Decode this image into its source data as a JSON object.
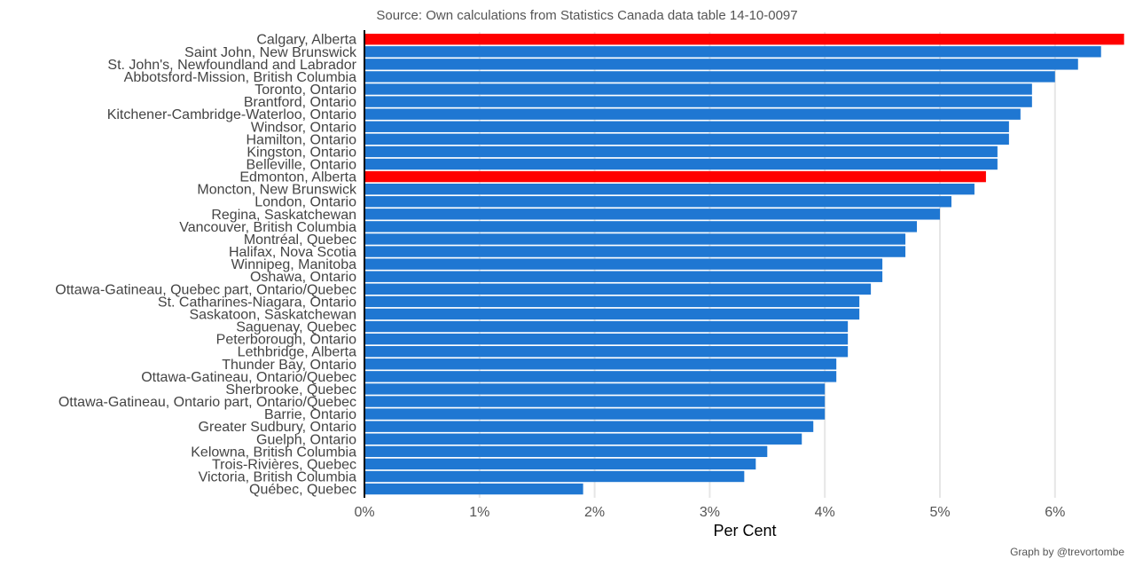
{
  "chart_data": {
    "type": "bar",
    "orientation": "horizontal",
    "subtitle": "Source: Own calculations from Statistics Canada data table 14-10-0097",
    "xlabel": "Per Cent",
    "caption": "Graph by @trevortombe",
    "xlim": [
      0,
      6.6
    ],
    "xticks": [
      "0%",
      "1%",
      "2%",
      "3%",
      "4%",
      "5%",
      "6%"
    ],
    "xtick_values": [
      0,
      1,
      2,
      3,
      4,
      5,
      6
    ],
    "grid": true,
    "colors": {
      "default": "#1f77d2",
      "highlight": "#ff0000"
    },
    "categories": [
      "Calgary, Alberta",
      "Saint John, New Brunswick",
      "St. John's, Newfoundland and Labrador",
      "Abbotsford-Mission, British Columbia",
      "Toronto, Ontario",
      "Brantford, Ontario",
      "Kitchener-Cambridge-Waterloo, Ontario",
      "Windsor, Ontario",
      "Hamilton, Ontario",
      "Kingston, Ontario",
      "Belleville, Ontario",
      "Edmonton, Alberta",
      "Moncton, New Brunswick",
      "London, Ontario",
      "Regina, Saskatchewan",
      "Vancouver, British Columbia",
      "Montréal, Quebec",
      "Halifax, Nova Scotia",
      "Winnipeg, Manitoba",
      "Oshawa, Ontario",
      "Ottawa-Gatineau, Quebec part, Ontario/Quebec",
      "St. Catharines-Niagara, Ontario",
      "Saskatoon, Saskatchewan",
      "Saguenay, Quebec",
      "Peterborough, Ontario",
      "Lethbridge, Alberta",
      "Thunder Bay, Ontario",
      "Ottawa-Gatineau, Ontario/Quebec",
      "Sherbrooke, Quebec",
      "Ottawa-Gatineau, Ontario part, Ontario/Quebec",
      "Barrie, Ontario",
      "Greater Sudbury, Ontario",
      "Guelph, Ontario",
      "Kelowna, British Columbia",
      "Trois-Rivières, Quebec",
      "Victoria, British Columbia",
      "Québec, Quebec"
    ],
    "values": [
      6.6,
      6.4,
      6.2,
      6.0,
      5.8,
      5.8,
      5.7,
      5.6,
      5.6,
      5.5,
      5.5,
      5.4,
      5.3,
      5.1,
      5.0,
      4.8,
      4.7,
      4.7,
      4.5,
      4.5,
      4.4,
      4.3,
      4.3,
      4.2,
      4.2,
      4.2,
      4.1,
      4.1,
      4.0,
      4.0,
      4.0,
      3.9,
      3.8,
      3.5,
      3.4,
      3.3,
      1.9
    ],
    "highlighted": [
      "Calgary, Alberta",
      "Edmonton, Alberta"
    ]
  }
}
